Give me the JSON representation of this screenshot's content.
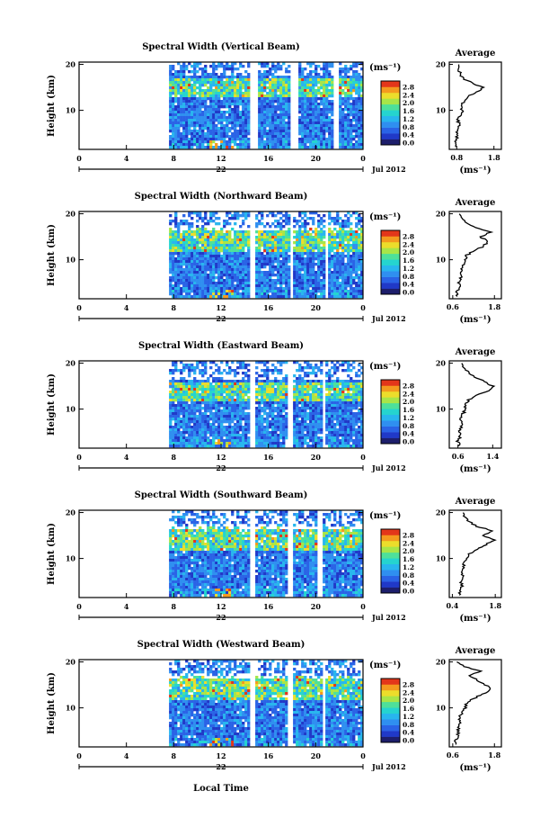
{
  "figure": {
    "xlabel": "Local Time",
    "date_label": "Jul 2012",
    "day_label": "22",
    "colorbar_unit": "(ms⁻¹)",
    "average_title": "Average",
    "average_xlabel": "(ms⁻¹)"
  },
  "chart_data": [
    {
      "type": "heatmap",
      "title": "Spectral Width (Vertical Beam)",
      "ylabel": "Height (km)",
      "xlim": [
        0,
        24
      ],
      "ylim": [
        1.5,
        20.5
      ],
      "xticks": [
        "0",
        "4",
        "8",
        "12",
        "16",
        "20",
        "0"
      ],
      "yticks": [
        "10",
        "20"
      ],
      "data_start_hour": 7.6,
      "gaps": [
        [
          14.4,
          14.9
        ],
        [
          17.8,
          18.4
        ],
        [
          21.4,
          21.8
        ]
      ],
      "colorbar_ticks": [
        "0.0",
        "0.4",
        "0.8",
        "1.2",
        "1.6",
        "2.0",
        "2.4",
        "2.8"
      ],
      "hot_layer_km": [
        13,
        17
      ],
      "average_profile": {
        "xticks": [
          "0.8",
          "1.8"
        ],
        "xlim": [
          0.6,
          2.0
        ],
        "yticks": [
          "10",
          "20"
        ],
        "height_km": [
          2,
          3,
          4,
          5,
          6,
          7,
          8,
          9,
          10,
          11,
          12,
          13,
          14,
          15,
          16,
          17,
          18,
          19,
          20
        ],
        "width": [
          0.8,
          0.76,
          0.82,
          0.8,
          0.84,
          0.86,
          0.84,
          0.9,
          0.95,
          0.92,
          1.0,
          1.1,
          1.35,
          1.5,
          1.2,
          0.95,
          0.9,
          0.82,
          0.86
        ]
      }
    },
    {
      "type": "heatmap",
      "title": "Spectral Width (Northward Beam)",
      "ylabel": "Height (km)",
      "xlim": [
        0,
        24
      ],
      "ylim": [
        1.5,
        20.5
      ],
      "xticks": [
        "0",
        "4",
        "8",
        "12",
        "16",
        "20",
        "0"
      ],
      "yticks": [
        "10",
        "20"
      ],
      "data_start_hour": 7.6,
      "gaps": [
        [
          14.4,
          14.8
        ],
        [
          17.7,
          18.0
        ],
        [
          20.6,
          21.0
        ]
      ],
      "colorbar_ticks": [
        "0.0",
        "0.4",
        "0.8",
        "1.2",
        "1.6",
        "2.0",
        "2.4",
        "2.8"
      ],
      "hot_layer_km": [
        12,
        17
      ],
      "average_profile": {
        "xticks": [
          "0.6",
          "1.8"
        ],
        "xlim": [
          0.5,
          2.0
        ],
        "yticks": [
          "10",
          "20"
        ],
        "height_km": [
          2,
          3,
          4,
          5,
          6,
          7,
          8,
          9,
          10,
          11,
          12,
          13,
          14,
          15,
          16,
          17,
          18,
          19,
          20
        ],
        "width": [
          0.75,
          0.7,
          0.8,
          0.78,
          0.82,
          0.85,
          0.82,
          0.9,
          0.95,
          1.0,
          1.25,
          1.5,
          1.6,
          1.4,
          1.7,
          1.3,
          1.0,
          0.85,
          0.8
        ]
      }
    },
    {
      "type": "heatmap",
      "title": "Spectral Width (Eastward Beam)",
      "ylabel": "Height (km)",
      "xlim": [
        0,
        24
      ],
      "ylim": [
        1.5,
        20.5
      ],
      "xticks": [
        "0",
        "4",
        "8",
        "12",
        "16",
        "20",
        "0"
      ],
      "yticks": [
        "10",
        "20"
      ],
      "data_start_hour": 7.6,
      "gaps": [
        [
          14.3,
          14.7
        ],
        [
          17.6,
          17.9
        ],
        [
          20.4,
          20.8
        ]
      ],
      "colorbar_ticks": [
        "0.0",
        "0.4",
        "0.8",
        "1.2",
        "1.6",
        "2.0",
        "2.4",
        "2.8"
      ],
      "hot_layer_km": [
        12,
        16
      ],
      "average_profile": {
        "xticks": [
          "0.6",
          "1.4"
        ],
        "xlim": [
          0.4,
          1.6
        ],
        "yticks": [
          "10",
          "20"
        ],
        "height_km": [
          2,
          3,
          4,
          5,
          6,
          7,
          8,
          9,
          10,
          11,
          12,
          13,
          14,
          15,
          16,
          17,
          18,
          19,
          20
        ],
        "width": [
          0.62,
          0.6,
          0.64,
          0.63,
          0.66,
          0.68,
          0.66,
          0.72,
          0.78,
          0.75,
          0.85,
          1.05,
          1.3,
          1.4,
          1.2,
          1.0,
          0.85,
          0.72,
          0.7
        ]
      }
    },
    {
      "type": "heatmap",
      "title": "Spectral Width (Southward Beam)",
      "ylabel": "Height (km)",
      "xlim": [
        0,
        24
      ],
      "ylim": [
        1.5,
        20.5
      ],
      "xticks": [
        "0",
        "4",
        "8",
        "12",
        "16",
        "20",
        "0"
      ],
      "yticks": [
        "10",
        "20"
      ],
      "data_start_hour": 7.6,
      "gaps": [
        [
          14.3,
          14.7
        ],
        [
          17.6,
          17.9
        ],
        [
          20.1,
          20.5
        ]
      ],
      "colorbar_ticks": [
        "0.0",
        "0.4",
        "0.8",
        "1.2",
        "1.6",
        "2.0",
        "2.4",
        "2.8"
      ],
      "hot_layer_km": [
        12,
        17
      ],
      "average_profile": {
        "xticks": [
          "0.4",
          "1.8"
        ],
        "xlim": [
          0.3,
          2.0
        ],
        "yticks": [
          "10",
          "20"
        ],
        "height_km": [
          2,
          3,
          4,
          5,
          6,
          7,
          8,
          9,
          10,
          11,
          12,
          13,
          14,
          15,
          16,
          17,
          18,
          19,
          20
        ],
        "width": [
          0.65,
          0.62,
          0.7,
          0.68,
          0.72,
          0.75,
          0.74,
          0.8,
          0.9,
          0.95,
          1.2,
          1.5,
          1.75,
          1.4,
          1.7,
          1.2,
          0.95,
          0.8,
          0.78
        ]
      }
    },
    {
      "type": "heatmap",
      "title": "Spectral Width (Westward Beam)",
      "ylabel": "Height (km)",
      "xlim": [
        0,
        24
      ],
      "ylim": [
        1.5,
        20.5
      ],
      "xticks": [
        "0",
        "4",
        "8",
        "12",
        "16",
        "20",
        "0"
      ],
      "yticks": [
        "10",
        "20"
      ],
      "data_start_hour": 7.6,
      "gaps": [
        [
          14.4,
          14.8
        ],
        [
          17.6,
          17.9
        ],
        [
          20.4,
          20.8
        ]
      ],
      "colorbar_ticks": [
        "0.0",
        "0.4",
        "0.8",
        "1.2",
        "1.6",
        "2.0",
        "2.4",
        "2.8"
      ],
      "hot_layer_km": [
        12,
        17
      ],
      "average_profile": {
        "xticks": [
          "0.6",
          "1.8"
        ],
        "xlim": [
          0.5,
          2.0
        ],
        "yticks": [
          "10",
          "20"
        ],
        "height_km": [
          2,
          3,
          4,
          5,
          6,
          7,
          8,
          9,
          10,
          11,
          12,
          13,
          14,
          15,
          16,
          17,
          18,
          19,
          20
        ],
        "width": [
          0.7,
          0.68,
          0.75,
          0.74,
          0.78,
          0.8,
          0.8,
          0.88,
          0.95,
          1.0,
          1.2,
          1.45,
          1.7,
          1.55,
          1.3,
          1.1,
          1.4,
          0.9,
          0.75
        ]
      }
    }
  ]
}
